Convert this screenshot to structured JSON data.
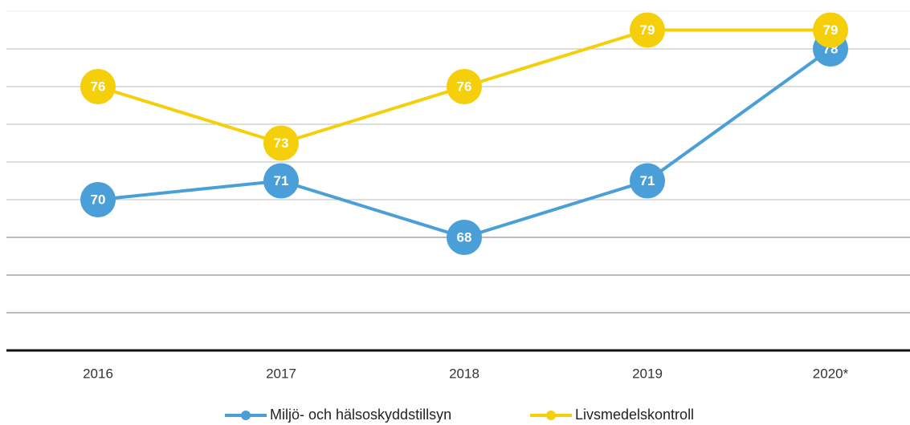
{
  "chart_data": {
    "type": "line",
    "categories": [
      "2016",
      "2017",
      "2018",
      "2019",
      "2020*"
    ],
    "series": [
      {
        "name": "Miljö- och hälsoskyddstillsyn",
        "color": "#4a9fd8",
        "values": [
          70,
          71,
          68,
          71,
          78
        ]
      },
      {
        "name": "Livsmedelskontroll",
        "color": "#f5cf0a",
        "values": [
          76,
          73,
          76,
          79,
          79
        ]
      }
    ],
    "ylim": [
      62,
      80
    ],
    "yticks": [
      62,
      64,
      66,
      68,
      70,
      72,
      74,
      76,
      78,
      80
    ],
    "grid": true
  }
}
